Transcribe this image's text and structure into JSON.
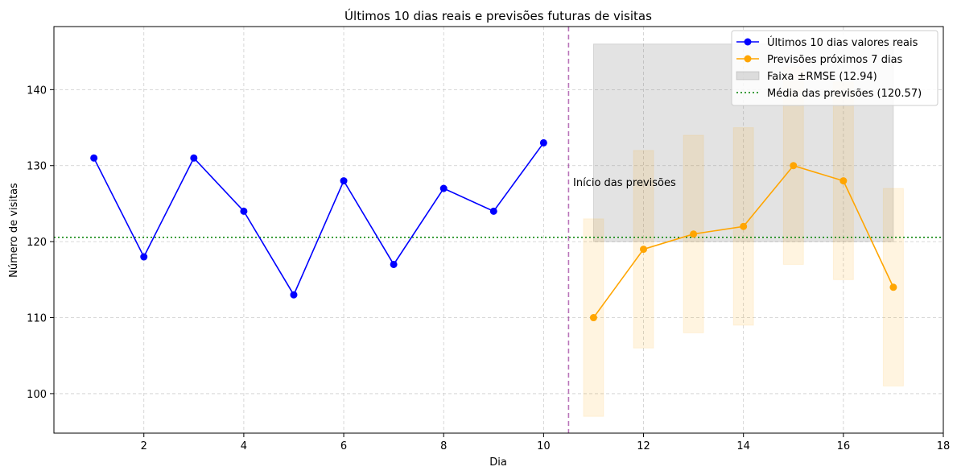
{
  "chart_data": {
    "type": "line",
    "title": "Últimos 10 dias reais e previsões futuras de visitas",
    "xlabel": "Dia",
    "ylabel": "Número de visitas",
    "xlim": [
      0.2,
      18
    ],
    "ylim": [
      94.8,
      148.3
    ],
    "xticks": [
      2,
      4,
      6,
      8,
      10,
      12,
      14,
      16,
      18
    ],
    "yticks": [
      100,
      110,
      120,
      130,
      140
    ],
    "grid": true,
    "legend_position": "top-right",
    "series": [
      {
        "name": "Últimos 10 dias valores reais",
        "color": "#0000ff",
        "x": [
          1,
          2,
          3,
          4,
          5,
          6,
          7,
          8,
          9,
          10
        ],
        "values": [
          131,
          118,
          131,
          124,
          113,
          128,
          117,
          127,
          124,
          133
        ]
      },
      {
        "name": "Previsões próximos 7 dias",
        "color": "#ffa500",
        "x": [
          11,
          12,
          13,
          14,
          15,
          16,
          17
        ],
        "values": [
          110,
          119,
          121,
          122,
          130,
          128,
          114
        ]
      }
    ],
    "error_bars": {
      "x": [
        11,
        12,
        13,
        14,
        15,
        16,
        17
      ],
      "low": [
        97,
        106,
        108,
        109,
        117,
        115,
        101
      ],
      "high": [
        123,
        132,
        134,
        135,
        143,
        141,
        127
      ],
      "color": "#ffa500"
    },
    "rmse_band": {
      "label": "Faixa ±RMSE (12.94)",
      "x": [
        11,
        17
      ],
      "y": [
        120,
        146
      ],
      "color": "#808080"
    },
    "mean_line": {
      "label": "Média das previsões (120.57)",
      "value": 120.57,
      "color": "#008000"
    },
    "forecast_start": {
      "x": 10.5,
      "label": "Início das previsões",
      "color": "#800080"
    }
  }
}
